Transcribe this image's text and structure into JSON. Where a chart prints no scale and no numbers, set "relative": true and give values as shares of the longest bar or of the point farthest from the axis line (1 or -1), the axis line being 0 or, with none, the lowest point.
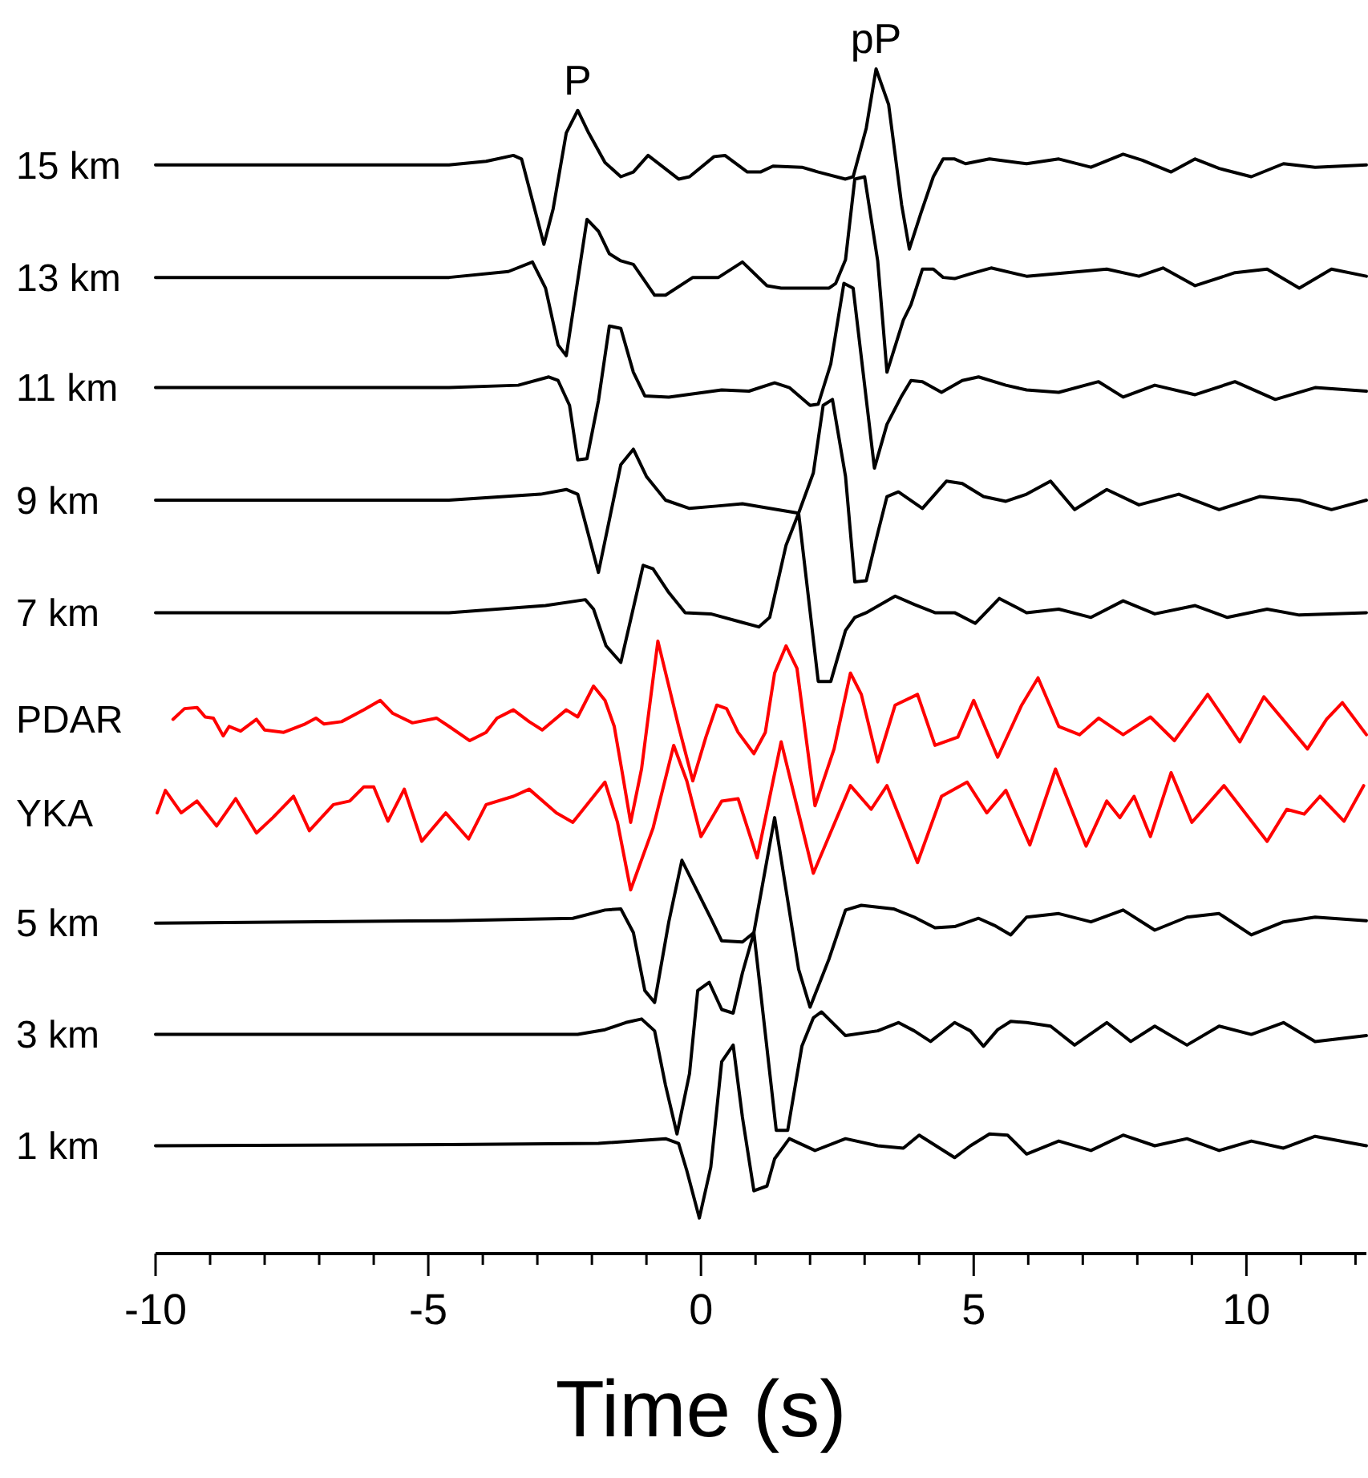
{
  "chart_data": {
    "type": "line",
    "relative": true,
    "xlabel": "Time (s)",
    "grid": false,
    "xlim": [
      -10,
      12.2
    ],
    "xticks": [
      -10,
      {
        "value": -9,
        "label": null
      },
      {
        "value": -8,
        "label": null
      },
      {
        "value": -7,
        "label": null
      },
      {
        "value": -6,
        "label": null
      },
      -5,
      {
        "value": -4,
        "label": null
      },
      {
        "value": -3,
        "label": null
      },
      {
        "value": -2,
        "label": null
      },
      {
        "value": -1,
        "label": null
      },
      0,
      {
        "value": 1,
        "label": null
      },
      {
        "value": 2,
        "label": null
      },
      {
        "value": 3,
        "label": null
      },
      {
        "value": 4,
        "label": null
      },
      5,
      {
        "value": 6,
        "label": null
      },
      {
        "value": 7,
        "label": null
      },
      {
        "value": 8,
        "label": null
      },
      {
        "value": 9,
        "label": null
      },
      10,
      {
        "value": 11,
        "label": null
      },
      {
        "value": 12,
        "label": null
      }
    ],
    "annotations": [
      {
        "text": "P",
        "x": -2.26,
        "y": 0.965
      },
      {
        "text": "pP",
        "x": 3.21,
        "y": 1.0
      }
    ],
    "series": [
      {
        "name": "15 km",
        "color": "#000000",
        "x": [
          -10,
          -4.62,
          -3.94,
          -3.44,
          -3.29,
          -2.88,
          -2.71,
          -2.47,
          -2.26,
          -2.06,
          -1.76,
          -1.47,
          -1.24,
          -0.97,
          -0.41,
          -0.21,
          0.24,
          0.44,
          0.85,
          1.09,
          1.32,
          1.85,
          2.15,
          2.65,
          2.79,
          3.03,
          3.21,
          3.44,
          3.68,
          3.82,
          4.03,
          4.26,
          4.44,
          4.65,
          4.85,
          5.29,
          5.97,
          6.56,
          7.15,
          7.74,
          8.09,
          8.62,
          9.06,
          9.5,
          10.09,
          10.68,
          11.26,
          12.2
        ],
        "values": [
          0.919,
          0.919,
          0.922,
          0.927,
          0.924,
          0.852,
          0.882,
          0.946,
          0.965,
          0.946,
          0.921,
          0.909,
          0.913,
          0.927,
          0.907,
          0.909,
          0.926,
          0.927,
          0.913,
          0.913,
          0.918,
          0.917,
          0.913,
          0.907,
          0.909,
          0.95,
          1.0,
          0.97,
          0.885,
          0.848,
          0.878,
          0.909,
          0.924,
          0.924,
          0.92,
          0.924,
          0.92,
          0.924,
          0.917,
          0.928,
          0.923,
          0.913,
          0.924,
          0.916,
          0.909,
          0.92,
          0.917,
          0.919
        ]
      },
      {
        "name": "13 km",
        "color": "#000000",
        "x": [
          -10,
          -4.62,
          -3.53,
          -3.09,
          -2.85,
          -2.62,
          -2.47,
          -2.09,
          -1.88,
          -1.68,
          -1.47,
          -1.24,
          -0.85,
          -0.65,
          -0.15,
          0.32,
          0.76,
          1.21,
          1.47,
          2.35,
          2.47,
          2.65,
          2.82,
          3.0,
          3.24,
          3.41,
          3.71,
          3.85,
          4.06,
          4.26,
          4.44,
          4.65,
          4.94,
          5.32,
          5.97,
          6.71,
          7.44,
          8.03,
          8.47,
          9.06,
          9.79,
          10.38,
          10.97,
          11.56,
          12.2
        ],
        "values": [
          0.824,
          0.824,
          0.829,
          0.837,
          0.815,
          0.767,
          0.758,
          0.873,
          0.863,
          0.844,
          0.838,
          0.835,
          0.809,
          0.809,
          0.824,
          0.824,
          0.837,
          0.817,
          0.815,
          0.815,
          0.819,
          0.839,
          0.907,
          0.909,
          0.838,
          0.744,
          0.788,
          0.801,
          0.831,
          0.831,
          0.824,
          0.823,
          0.827,
          0.832,
          0.825,
          0.828,
          0.831,
          0.825,
          0.832,
          0.817,
          0.828,
          0.831,
          0.815,
          0.831,
          0.825
        ]
      },
      {
        "name": "11 km",
        "color": "#000000",
        "x": [
          -10,
          -4.62,
          -3.35,
          -2.79,
          -2.62,
          -2.41,
          -2.26,
          -2.09,
          -1.88,
          -1.68,
          -1.47,
          -1.24,
          -1.03,
          -0.59,
          0.38,
          0.88,
          1.35,
          1.62,
          2.0,
          2.15,
          2.38,
          2.62,
          2.79,
          3.18,
          3.41,
          3.68,
          3.85,
          4.06,
          4.41,
          4.79,
          5.09,
          5.59,
          5.97,
          6.56,
          7.29,
          7.74,
          8.32,
          9.06,
          9.79,
          10.53,
          11.26,
          12.2
        ],
        "values": [
          0.731,
          0.731,
          0.733,
          0.74,
          0.737,
          0.716,
          0.67,
          0.671,
          0.72,
          0.783,
          0.781,
          0.744,
          0.724,
          0.723,
          0.729,
          0.728,
          0.735,
          0.731,
          0.716,
          0.717,
          0.751,
          0.819,
          0.815,
          0.663,
          0.7,
          0.724,
          0.737,
          0.736,
          0.727,
          0.737,
          0.74,
          0.733,
          0.729,
          0.727,
          0.736,
          0.723,
          0.733,
          0.725,
          0.736,
          0.721,
          0.731,
          0.728
        ]
      },
      {
        "name": "9 km",
        "color": "#000000",
        "x": [
          -10,
          -4.62,
          -2.94,
          -2.47,
          -2.26,
          -1.88,
          -1.47,
          -1.24,
          -1.0,
          -0.65,
          -0.21,
          0.29,
          0.76,
          1.26,
          1.79,
          2.06,
          2.24,
          2.41,
          2.65,
          2.82,
          3.03,
          3.24,
          3.41,
          3.62,
          4.06,
          4.5,
          4.79,
          5.18,
          5.59,
          5.97,
          6.41,
          6.85,
          7.44,
          8.03,
          8.76,
          9.5,
          10.24,
          10.97,
          11.56,
          12.2
        ],
        "values": [
          0.636,
          0.636,
          0.641,
          0.645,
          0.641,
          0.575,
          0.666,
          0.679,
          0.656,
          0.636,
          0.629,
          0.631,
          0.633,
          0.629,
          0.625,
          0.659,
          0.716,
          0.721,
          0.656,
          0.567,
          0.568,
          0.608,
          0.639,
          0.643,
          0.629,
          0.652,
          0.65,
          0.639,
          0.635,
          0.641,
          0.652,
          0.628,
          0.645,
          0.632,
          0.641,
          0.628,
          0.639,
          0.636,
          0.628,
          0.636
        ]
      },
      {
        "name": "7 km",
        "color": "#000000",
        "x": [
          -10,
          -4.62,
          -2.85,
          -2.12,
          -1.97,
          -1.74,
          -1.47,
          -1.06,
          -0.88,
          -0.59,
          -0.29,
          0.18,
          0.74,
          1.06,
          1.26,
          1.56,
          1.79,
          2.15,
          2.38,
          2.65,
          2.82,
          3.03,
          3.56,
          3.91,
          4.29,
          4.65,
          5.03,
          5.47,
          5.97,
          6.56,
          7.15,
          7.74,
          8.32,
          9.06,
          9.65,
          10.38,
          10.97,
          12.2
        ],
        "values": [
          0.541,
          0.541,
          0.547,
          0.552,
          0.544,
          0.513,
          0.499,
          0.581,
          0.578,
          0.558,
          0.541,
          0.54,
          0.533,
          0.529,
          0.537,
          0.598,
          0.625,
          0.483,
          0.483,
          0.526,
          0.537,
          0.541,
          0.555,
          0.548,
          0.541,
          0.541,
          0.532,
          0.553,
          0.541,
          0.544,
          0.537,
          0.551,
          0.54,
          0.547,
          0.537,
          0.544,
          0.539,
          0.541
        ]
      },
      {
        "name": "PDAR",
        "color": "#ff0000",
        "x": [
          -9.68,
          -9.47,
          -9.24,
          -9.09,
          -8.94,
          -8.76,
          -8.65,
          -8.44,
          -8.15,
          -8.0,
          -7.65,
          -7.26,
          -7.06,
          -6.91,
          -6.59,
          -6.18,
          -5.88,
          -5.65,
          -5.29,
          -4.85,
          -4.62,
          -4.24,
          -3.94,
          -3.74,
          -3.44,
          -3.15,
          -2.91,
          -2.47,
          -2.26,
          -1.97,
          -1.76,
          -1.59,
          -1.44,
          -1.29,
          -1.09,
          -0.79,
          -0.41,
          -0.15,
          0.09,
          0.29,
          0.47,
          0.68,
          0.97,
          1.18,
          1.35,
          1.56,
          1.76,
          2.09,
          2.44,
          2.74,
          2.94,
          3.24,
          3.56,
          3.97,
          4.29,
          4.71,
          5.0,
          5.44,
          5.88,
          6.18,
          6.56,
          6.94,
          7.29,
          7.74,
          8.24,
          8.68,
          9.29,
          9.88,
          10.32,
          11.12,
          11.47,
          11.76,
          12.2
        ],
        "values": [
          0.451,
          0.46,
          0.461,
          0.453,
          0.452,
          0.437,
          0.445,
          0.441,
          0.451,
          0.442,
          0.44,
          0.447,
          0.452,
          0.447,
          0.449,
          0.459,
          0.467,
          0.456,
          0.448,
          0.452,
          0.445,
          0.433,
          0.44,
          0.452,
          0.459,
          0.449,
          0.442,
          0.459,
          0.453,
          0.479,
          0.467,
          0.445,
          0.405,
          0.364,
          0.409,
          0.517,
          0.445,
          0.399,
          0.436,
          0.463,
          0.46,
          0.44,
          0.422,
          0.44,
          0.49,
          0.513,
          0.494,
          0.378,
          0.426,
          0.49,
          0.472,
          0.415,
          0.463,
          0.472,
          0.429,
          0.436,
          0.467,
          0.419,
          0.463,
          0.486,
          0.445,
          0.438,
          0.452,
          0.438,
          0.453,
          0.433,
          0.472,
          0.432,
          0.47,
          0.426,
          0.451,
          0.465,
          0.438
        ]
      },
      {
        "name": "YKA",
        "color": "#ff0000",
        "x": [
          -9.97,
          -9.82,
          -9.53,
          -9.24,
          -8.88,
          -8.53,
          -8.15,
          -7.85,
          -7.47,
          -7.18,
          -6.74,
          -6.44,
          -6.18,
          -6.0,
          -5.74,
          -5.44,
          -5.12,
          -4.68,
          -4.26,
          -3.94,
          -3.44,
          -3.15,
          -2.65,
          -2.35,
          -1.76,
          -1.53,
          -1.29,
          -0.88,
          -0.5,
          -0.26,
          0.0,
          0.38,
          0.68,
          1.03,
          1.47,
          2.06,
          2.74,
          3.12,
          3.41,
          3.97,
          4.41,
          4.88,
          5.24,
          5.59,
          6.03,
          6.5,
          7.06,
          7.44,
          7.68,
          7.94,
          8.24,
          8.62,
          9.0,
          9.59,
          10.38,
          10.74,
          11.06,
          11.35,
          11.79,
          12.15
        ],
        "values": [
          0.372,
          0.391,
          0.372,
          0.382,
          0.361,
          0.384,
          0.355,
          0.368,
          0.386,
          0.357,
          0.379,
          0.382,
          0.394,
          0.394,
          0.365,
          0.392,
          0.348,
          0.372,
          0.35,
          0.379,
          0.386,
          0.392,
          0.372,
          0.364,
          0.398,
          0.364,
          0.307,
          0.359,
          0.429,
          0.399,
          0.352,
          0.382,
          0.384,
          0.334,
          0.432,
          0.321,
          0.395,
          0.375,
          0.395,
          0.33,
          0.386,
          0.398,
          0.372,
          0.391,
          0.345,
          0.409,
          0.344,
          0.382,
          0.368,
          0.386,
          0.352,
          0.406,
          0.364,
          0.395,
          0.348,
          0.375,
          0.371,
          0.386,
          0.365,
          0.395
        ]
      },
      {
        "name": "5 km",
        "color": "#000000",
        "x": [
          -10,
          -4.62,
          -2.35,
          -1.76,
          -1.47,
          -1.24,
          -1.03,
          -0.85,
          -0.59,
          -0.35,
          0.18,
          0.38,
          0.76,
          0.97,
          1.35,
          1.79,
          2.0,
          2.35,
          2.65,
          2.94,
          3.53,
          3.91,
          4.29,
          4.65,
          5.09,
          5.38,
          5.68,
          5.97,
          6.56,
          7.15,
          7.74,
          8.32,
          8.91,
          9.5,
          10.09,
          10.68,
          11.26,
          12.2
        ],
        "values": [
          0.279,
          0.281,
          0.283,
          0.29,
          0.291,
          0.271,
          0.222,
          0.212,
          0.28,
          0.332,
          0.283,
          0.264,
          0.263,
          0.271,
          0.368,
          0.24,
          0.208,
          0.249,
          0.29,
          0.294,
          0.291,
          0.284,
          0.275,
          0.276,
          0.283,
          0.277,
          0.269,
          0.284,
          0.287,
          0.28,
          0.29,
          0.273,
          0.284,
          0.287,
          0.269,
          0.28,
          0.284,
          0.281
        ]
      },
      {
        "name": "3 km",
        "color": "#000000",
        "x": [
          -10,
          -4.62,
          -2.26,
          -1.76,
          -1.38,
          -1.09,
          -0.85,
          -0.65,
          -0.44,
          -0.21,
          -0.06,
          0.15,
          0.38,
          0.59,
          0.76,
          0.97,
          1.38,
          1.59,
          1.85,
          2.06,
          2.21,
          2.65,
          3.24,
          3.62,
          3.91,
          4.21,
          4.65,
          4.94,
          5.18,
          5.44,
          5.68,
          5.97,
          6.41,
          6.85,
          7.44,
          7.88,
          8.32,
          8.91,
          9.5,
          10.09,
          10.68,
          11.26,
          12.2
        ],
        "values": [
          0.185,
          0.185,
          0.185,
          0.189,
          0.195,
          0.198,
          0.188,
          0.142,
          0.101,
          0.152,
          0.222,
          0.229,
          0.206,
          0.203,
          0.237,
          0.271,
          0.104,
          0.104,
          0.175,
          0.199,
          0.204,
          0.184,
          0.188,
          0.195,
          0.188,
          0.179,
          0.195,
          0.188,
          0.175,
          0.189,
          0.196,
          0.195,
          0.192,
          0.176,
          0.195,
          0.179,
          0.192,
          0.176,
          0.192,
          0.185,
          0.195,
          0.179,
          0.184
        ]
      },
      {
        "name": "1 km",
        "color": "#000000",
        "x": [
          -10,
          -4.62,
          -1.88,
          -0.65,
          -0.41,
          -0.26,
          -0.03,
          0.18,
          0.38,
          0.59,
          0.76,
          0.97,
          1.21,
          1.35,
          1.62,
          2.09,
          2.65,
          3.24,
          3.71,
          4.0,
          4.65,
          4.94,
          5.29,
          5.62,
          5.97,
          6.56,
          7.15,
          7.74,
          8.32,
          8.91,
          9.5,
          10.09,
          10.68,
          11.26,
          12.2
        ],
        "values": [
          0.091,
          0.092,
          0.093,
          0.097,
          0.093,
          0.07,
          0.03,
          0.073,
          0.162,
          0.176,
          0.115,
          0.053,
          0.057,
          0.08,
          0.097,
          0.087,
          0.097,
          0.091,
          0.089,
          0.1,
          0.081,
          0.091,
          0.101,
          0.1,
          0.084,
          0.095,
          0.087,
          0.1,
          0.091,
          0.097,
          0.087,
          0.095,
          0.089,
          0.099,
          0.091
        ]
      }
    ]
  }
}
